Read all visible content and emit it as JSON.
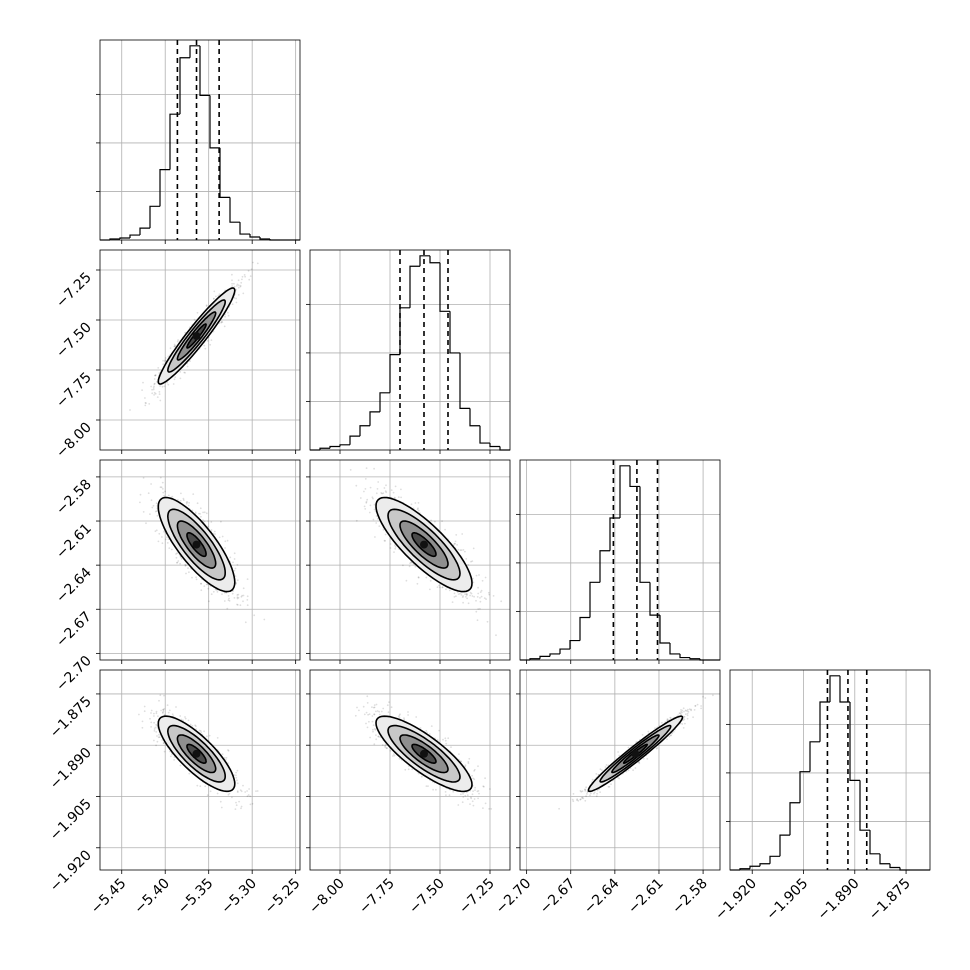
{
  "chart_data": {
    "type": "corner",
    "parameters": [
      {
        "range": [
          -5.475,
          -5.245
        ],
        "ticks": [
          -5.45,
          -5.4,
          -5.35,
          -5.3,
          -5.25
        ],
        "tick_labels": [
          "−5.45",
          "−5.40",
          "−5.35",
          "−5.30",
          "−5.25"
        ],
        "mean": -5.364,
        "sd": 0.022,
        "quantiles": [
          -5.386,
          -5.364,
          -5.338
        ]
      },
      {
        "range": [
          -8.15,
          -7.15
        ],
        "ticks": [
          -8.0,
          -7.75,
          -7.5,
          -7.25
        ],
        "tick_labels": [
          "−8.00",
          "−7.75",
          "−7.50",
          "−7.25"
        ],
        "mean": -7.58,
        "sd": 0.12,
        "quantiles": [
          -7.7,
          -7.58,
          -7.46
        ]
      },
      {
        "range": [
          -2.7045,
          -2.5685
        ],
        "ticks": [
          -2.7,
          -2.67,
          -2.64,
          -2.61,
          -2.58
        ],
        "tick_labels": [
          "−2.70",
          "−2.67",
          "−2.64",
          "−2.61",
          "−2.58"
        ],
        "mean": -2.626,
        "sd": 0.016,
        "quantiles": [
          -2.641,
          -2.625,
          -2.611
        ]
      },
      {
        "range": [
          -1.9265,
          -1.868
        ],
        "ticks": [
          -1.92,
          -1.905,
          -1.89,
          -1.875
        ],
        "tick_labels": [
          "−1.920",
          "−1.905",
          "−1.890",
          "−1.875"
        ],
        "mean": -1.8925,
        "sd": 0.0055,
        "quantiles": [
          -1.898,
          -1.892,
          -1.8865
        ]
      }
    ],
    "histograms": [
      {
        "param": 0,
        "counts": [
          0,
          1,
          2,
          5,
          12,
          34,
          71,
          127,
          184,
          196,
          146,
          93,
          43,
          18,
          6,
          3,
          1,
          0,
          0,
          0
        ]
      },
      {
        "param": 1,
        "counts": [
          0,
          1,
          2,
          3,
          8,
          14,
          22,
          33,
          55,
          82,
          106,
          112,
          108,
          80,
          56,
          24,
          14,
          4,
          2,
          0
        ]
      },
      {
        "param": 2,
        "counts": [
          0,
          1,
          3,
          5,
          9,
          16,
          35,
          64,
          90,
          117,
          160,
          143,
          64,
          37,
          14,
          5,
          2,
          1,
          0,
          0
        ]
      },
      {
        "param": 3,
        "counts": [
          0,
          1,
          3,
          5,
          11,
          28,
          54,
          79,
          103,
          135,
          156,
          135,
          72,
          32,
          13,
          5,
          2,
          0,
          0,
          0
        ]
      }
    ],
    "pairs": [
      {
        "x": 0,
        "y": 1,
        "correlation": 0.95
      },
      {
        "x": 0,
        "y": 2,
        "correlation": -0.8
      },
      {
        "x": 1,
        "y": 2,
        "correlation": -0.82
      },
      {
        "x": 0,
        "y": 3,
        "correlation": -0.8
      },
      {
        "x": 1,
        "y": 3,
        "correlation": -0.82
      },
      {
        "x": 2,
        "y": 3,
        "correlation": 0.97
      }
    ],
    "grid": true,
    "quantile_style": "dashed",
    "title": "",
    "xlabel": "",
    "ylabel": ""
  }
}
